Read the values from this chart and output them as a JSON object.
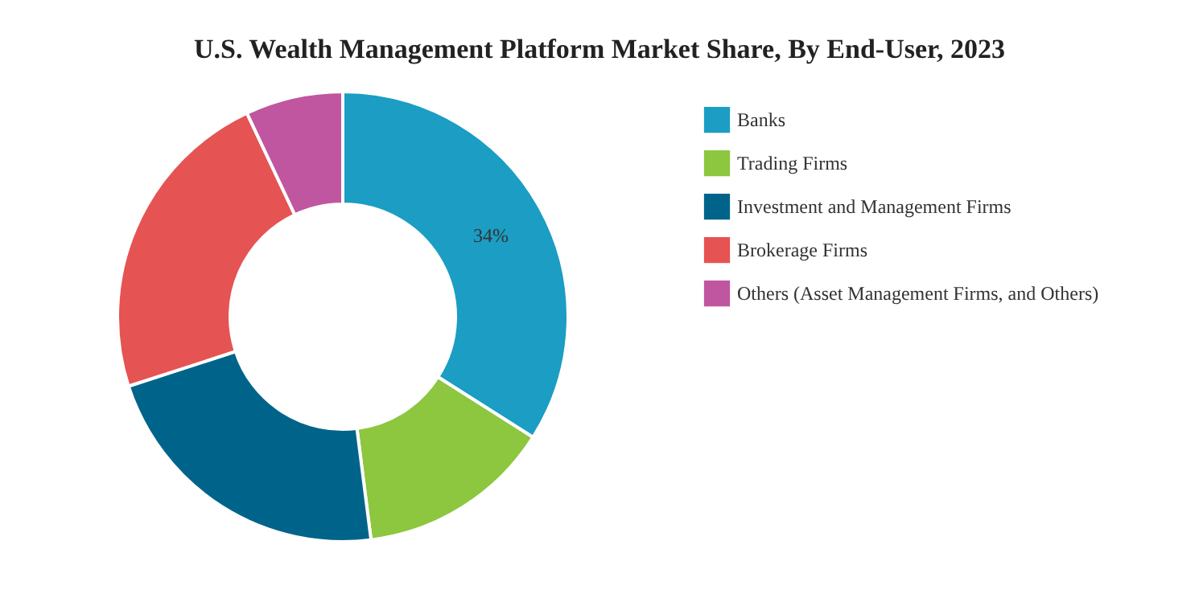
{
  "chart_data": {
    "type": "donut",
    "title": "U.S. Wealth Management Platform Market Share, By End-User, 2023",
    "categories": [
      "Banks",
      "Trading Firms",
      "Investment and Management Firms",
      "Brokerage Firms",
      "Others (Asset Management Firms, and Others)"
    ],
    "values": [
      34,
      14,
      22,
      23,
      7
    ],
    "colors": [
      "#1b9dc4",
      "#8dc63f",
      "#00648a",
      "#e55353",
      "#c0569f"
    ],
    "value_labels": [
      "34%",
      null,
      null,
      null,
      null
    ],
    "legend": "top right"
  }
}
